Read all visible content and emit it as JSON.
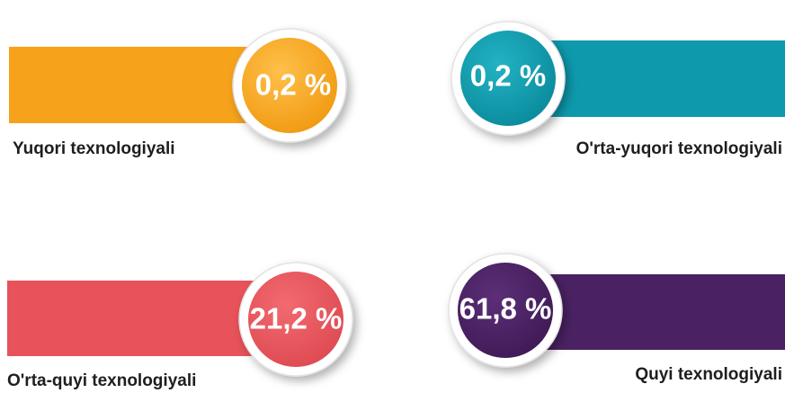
{
  "items": [
    {
      "label": "Yuqori texnologiyali",
      "value": "0,2 %"
    },
    {
      "label": "O'rta-yuqori texnologiyali",
      "value": "0,2 %"
    },
    {
      "label": "O'rta-quyi texnologiyali",
      "value": "21,2 %"
    },
    {
      "label": "Quyi texnologiyali",
      "value": "61,8 %"
    }
  ]
}
